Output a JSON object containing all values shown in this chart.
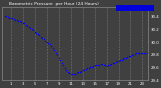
{
  "title": "Barometric Pressure",
  "subtitle": "per Hour (24 Hours)",
  "ylim": [
    29.4,
    30.55
  ],
  "xlim": [
    -0.5,
    24
  ],
  "yticks": [
    29.4,
    29.6,
    29.8,
    30.0,
    30.2,
    30.4
  ],
  "ytick_labels": [
    "29.4",
    "29.6",
    "29.8",
    "30.0",
    "30.2",
    "30.4"
  ],
  "xticks": [
    1,
    3,
    5,
    7,
    9,
    11,
    13,
    15,
    17,
    19,
    21,
    23
  ],
  "xtick_labels": [
    "1",
    "3",
    "5",
    "7",
    "9",
    "11",
    "13",
    "15",
    "17",
    "19",
    "21",
    "23"
  ],
  "vgrid_lines": [
    1,
    3,
    5,
    7,
    9,
    11,
    13,
    15,
    17,
    19,
    21,
    23
  ],
  "dot_color": "#0000ff",
  "legend_color": "#0000dd",
  "bg_color": "#404040",
  "plot_bg_color": "#404040",
  "tick_color": "#ffffff",
  "spine_color": "#888888",
  "grid_color": "#777777",
  "hours": [
    0,
    0.25,
    0.5,
    0.75,
    1,
    1.25,
    1.5,
    1.75,
    2,
    2.25,
    2.5,
    2.75,
    3,
    3.25,
    3.5,
    3.75,
    4,
    4.25,
    4.5,
    4.75,
    5,
    5.25,
    5.5,
    5.75,
    6,
    6.25,
    6.5,
    6.75,
    7,
    7.25,
    7.5,
    7.75,
    8,
    8.25,
    8.5,
    8.75,
    9,
    9.25,
    9.5,
    9.75,
    10,
    10.25,
    10.5,
    10.75,
    11,
    11.25,
    11.5,
    11.75,
    12,
    12.25,
    12.5,
    12.75,
    13,
    13.25,
    13.5,
    13.75,
    14,
    14.25,
    14.5,
    14.75,
    15,
    15.25,
    15.5,
    15.75,
    16,
    16.25,
    16.5,
    16.75,
    17,
    17.25,
    17.5,
    17.75,
    18,
    18.25,
    18.5,
    18.75,
    19,
    19.25,
    19.5,
    19.75,
    20,
    20.25,
    20.5,
    20.75,
    21,
    21.25,
    21.5,
    21.75,
    22,
    22.25,
    22.5,
    22.75,
    23,
    23.25,
    23.5,
    23.75
  ],
  "pressure": [
    30.4,
    30.4,
    30.39,
    30.38,
    30.37,
    30.37,
    30.36,
    30.35,
    30.34,
    30.33,
    30.32,
    30.31,
    30.3,
    30.29,
    30.27,
    30.25,
    30.23,
    30.22,
    30.2,
    30.18,
    30.16,
    30.14,
    30.12,
    30.1,
    30.08,
    30.06,
    30.04,
    30.02,
    30.0,
    29.98,
    29.96,
    29.93,
    29.9,
    29.87,
    29.83,
    29.79,
    29.75,
    29.71,
    29.67,
    29.63,
    29.59,
    29.56,
    29.53,
    29.51,
    29.5,
    29.5,
    29.5,
    29.5,
    29.51,
    29.52,
    29.53,
    29.54,
    29.55,
    29.56,
    29.57,
    29.58,
    29.59,
    29.6,
    29.61,
    29.62,
    29.63,
    29.63,
    29.64,
    29.64,
    29.65,
    29.65,
    29.64,
    29.63,
    29.62,
    29.63,
    29.64,
    29.65,
    29.66,
    29.67,
    29.68,
    29.69,
    29.7,
    29.71,
    29.72,
    29.73,
    29.74,
    29.75,
    29.76,
    29.77,
    29.78,
    29.79,
    29.8,
    29.81,
    29.82,
    29.83,
    29.83,
    29.83,
    29.83,
    29.83,
    29.83,
    29.83
  ]
}
